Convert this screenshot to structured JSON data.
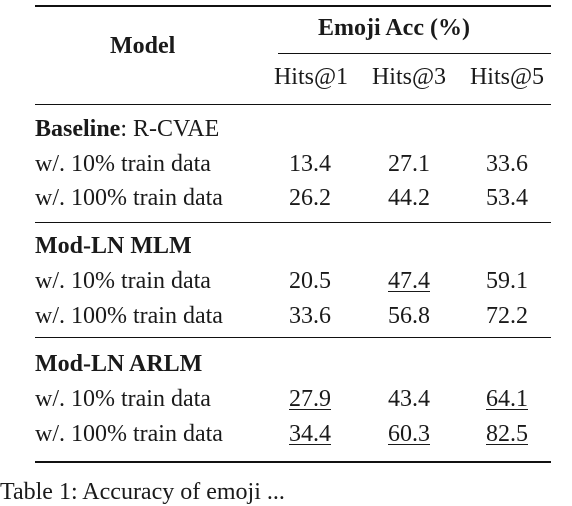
{
  "header": {
    "model_label": "Model",
    "group_label": "Emoji Acc (%)",
    "columns": [
      "Hits@1",
      "Hits@3",
      "Hits@5"
    ]
  },
  "sections": [
    {
      "title_bold": "Baseline",
      "title_rest": ": R-CVAE",
      "rows": [
        {
          "label": "w/. 10% train data",
          "values": [
            "13.4",
            "27.1",
            "33.6"
          ],
          "underline": [
            false,
            false,
            false
          ]
        },
        {
          "label": "w/. 100% train data",
          "values": [
            "26.2",
            "44.2",
            "53.4"
          ],
          "underline": [
            false,
            false,
            false
          ]
        }
      ]
    },
    {
      "title_bold": "Mod-LN MLM",
      "title_rest": "",
      "rows": [
        {
          "label": "w/. 10% train data",
          "values": [
            "20.5",
            "47.4",
            "59.1"
          ],
          "underline": [
            false,
            true,
            false
          ]
        },
        {
          "label": "w/. 100% train data",
          "values": [
            "33.6",
            "56.8",
            "72.2"
          ],
          "underline": [
            false,
            false,
            false
          ]
        }
      ]
    },
    {
      "title_bold": "Mod-LN ARLM",
      "title_rest": "",
      "rows": [
        {
          "label": "w/. 10% train data",
          "values": [
            "27.9",
            "43.4",
            "64.1"
          ],
          "underline": [
            true,
            false,
            true
          ]
        },
        {
          "label": "w/. 100% train data",
          "values": [
            "34.4",
            "60.3",
            "82.5"
          ],
          "underline": [
            true,
            true,
            true
          ]
        }
      ]
    }
  ],
  "caption": "Table 1:  Accuracy of emoji ..."
}
